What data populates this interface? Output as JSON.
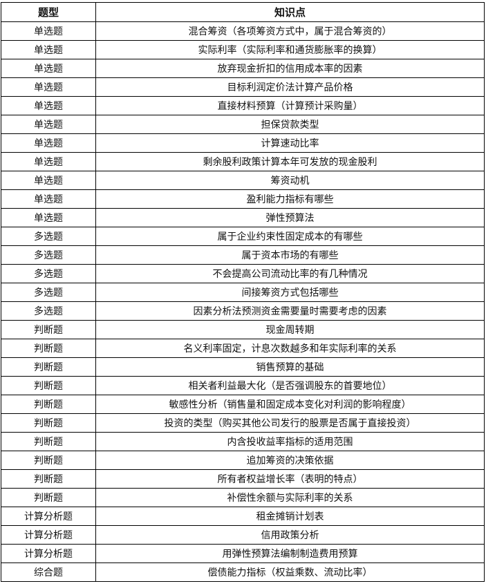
{
  "headers": [
    "题型",
    "知识点"
  ],
  "rows": [
    [
      "单选题",
      "混合筹资（各项筹资方式中，属于混合筹资的）"
    ],
    [
      "单选题",
      "实际利率（实际利率和通货膨胀率的换算）"
    ],
    [
      "单选题",
      "放弃现金折扣的信用成本率的因素"
    ],
    [
      "单选题",
      "目标利润定价法计算产品价格"
    ],
    [
      "单选题",
      "直接材料预算（计算预计采购量）"
    ],
    [
      "单选题",
      "担保贷款类型"
    ],
    [
      "单选题",
      "计算速动比率"
    ],
    [
      "单选题",
      "剩余股利政策计算本年可发放的现金股利"
    ],
    [
      "单选题",
      "筹资动机"
    ],
    [
      "单选题",
      "盈利能力指标有哪些"
    ],
    [
      "单选题",
      "弹性预算法"
    ],
    [
      "多选题",
      "属于企业约束性固定成本的有哪些"
    ],
    [
      "多选题",
      "属于资本市场的有哪些"
    ],
    [
      "多选题",
      "不会提高公司流动比率的有几种情况"
    ],
    [
      "多选题",
      "间接筹资方式包括哪些"
    ],
    [
      "多选题",
      "因素分析法预测资金需要量时需要考虑的因素"
    ],
    [
      "判断题",
      "现金周转期"
    ],
    [
      "判断题",
      "名义利率固定，计息次数越多和年实际利率的关系"
    ],
    [
      "判断题",
      "销售预算的基础"
    ],
    [
      "判断题",
      "相关者利益最大化（是否强调股东的首要地位）"
    ],
    [
      "判断题",
      "敏感性分析（销售量和固定成本变化对利润的影响程度）"
    ],
    [
      "判断题",
      "投资的类型（购买其他公司发行的股票是否属于直接投资）"
    ],
    [
      "判断题",
      "内含投收益率指标的适用范围"
    ],
    [
      "判断题",
      "追加筹资的决策依据"
    ],
    [
      "判断题",
      "所有者权益增长率（表明的特点）"
    ],
    [
      "判断题",
      "补偿性余额与实际利率的关系"
    ],
    [
      "计算分析题",
      "租金摊销计划表"
    ],
    [
      "计算分析题",
      "信用政策分析"
    ],
    [
      "计算分析题",
      "用弹性预算法编制制造费用预算"
    ],
    [
      "综合题",
      "偿债能力指标（权益乘数、流动比率）"
    ]
  ]
}
